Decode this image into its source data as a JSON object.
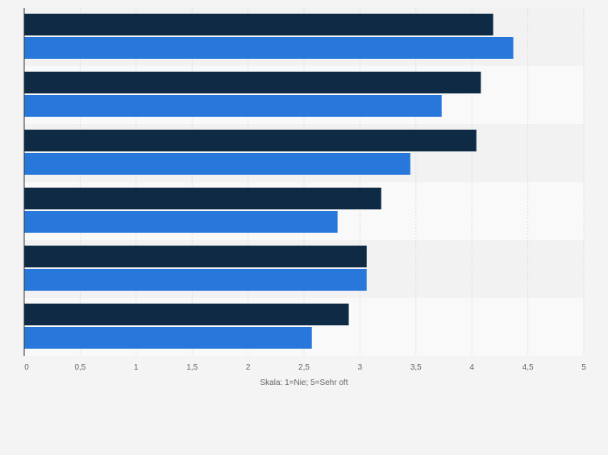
{
  "chart_data": {
    "type": "bar",
    "orientation": "horizontal",
    "xlabel": "Skala: 1=Nie; 5=Sehr oft",
    "xlim": [
      0,
      5
    ],
    "xticks": [
      "0",
      "0,5",
      "1",
      "1,5",
      "2",
      "2,5",
      "3",
      "3,5",
      "4",
      "4,5",
      "5"
    ],
    "grid": true,
    "colors": [
      "#0f2a44",
      "#2878dc"
    ],
    "series": [
      {
        "values": [
          4.19,
          4.08,
          4.04,
          3.19,
          3.06,
          2.9
        ]
      },
      {
        "values": [
          4.37,
          3.73,
          3.45,
          2.8,
          3.06,
          2.57
        ]
      }
    ]
  }
}
